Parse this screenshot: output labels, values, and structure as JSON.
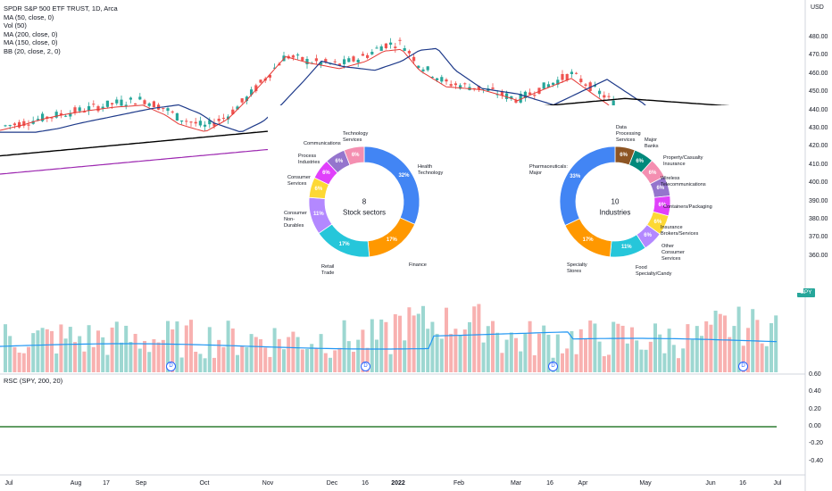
{
  "header": {
    "symbol": "SPDR S&P 500 ETF TRUST, 1D, Arca",
    "indicators": [
      "MA (50, close, 0)",
      "Vol (50)",
      "MA (200, close, 0)",
      "MA (150, close, 0)",
      "BB (20, close, 2, 0)"
    ],
    "rsc": "RSC (SPY, 200, 20)",
    "currency": "USD",
    "price_tag": "SPY"
  },
  "colors": {
    "up": "#26a69a",
    "down": "#ef5350",
    "ma50": "#1e3a8a",
    "ma200": "#000000",
    "ma150": "#9c27b0",
    "bb": "#e53935",
    "vol_ma": "#2196f3",
    "rsc": "#2e7d32"
  },
  "price_axis": [
    "480.00",
    "470.00",
    "460.00",
    "450.00",
    "440.00",
    "430.00",
    "420.00",
    "410.00",
    "400.00",
    "390.00",
    "380.00",
    "370.00",
    "360.00"
  ],
  "rsc_axis": [
    "0.60",
    "0.40",
    "0.20",
    "0.00",
    "-0.20",
    "-0.40"
  ],
  "time_axis": [
    {
      "label": "Jul",
      "bold": false
    },
    {
      "label": "Aug",
      "bold": false
    },
    {
      "label": "17",
      "bold": false
    },
    {
      "label": "Sep",
      "bold": false
    },
    {
      "label": "Oct",
      "bold": false
    },
    {
      "label": "Nov",
      "bold": false
    },
    {
      "label": "Dec",
      "bold": false
    },
    {
      "label": "16",
      "bold": false
    },
    {
      "label": "2022",
      "bold": true
    },
    {
      "label": "Feb",
      "bold": false
    },
    {
      "label": "Mar",
      "bold": false
    },
    {
      "label": "16",
      "bold": false
    },
    {
      "label": "Apr",
      "bold": false
    },
    {
      "label": "May",
      "bold": false
    },
    {
      "label": "Jun",
      "bold": false
    },
    {
      "label": "16",
      "bold": false
    },
    {
      "label": "Jul",
      "bold": false
    }
  ],
  "events": [
    "D",
    "D",
    "D",
    "D"
  ],
  "sectors": {
    "count": "8",
    "label": "Stock sectors",
    "slices": [
      {
        "name": "Health\nTechnology",
        "pct": "32%",
        "value": 32,
        "color": "#4285f4"
      },
      {
        "name": "Finance",
        "pct": "17%",
        "value": 17,
        "color": "#ff9800"
      },
      {
        "name": "Retail\nTrade",
        "pct": "17%",
        "value": 17,
        "color": "#26c6da"
      },
      {
        "name": "Consumer\nNon-\nDurables",
        "pct": "11%",
        "value": 11,
        "color": "#b388ff"
      },
      {
        "name": "Consumer\nServices",
        "pct": "6%",
        "value": 6,
        "color": "#fdd835"
      },
      {
        "name": "Process\nIndustries",
        "pct": "6%",
        "value": 6,
        "color": "#e040fb"
      },
      {
        "name": "Communications",
        "pct": "6%",
        "value": 6,
        "color": "#9575cd"
      },
      {
        "name": "Technology\nServices",
        "pct": "6%",
        "value": 6,
        "color": "#f48fb1"
      }
    ]
  },
  "industries": {
    "count": "10",
    "label": "Industries",
    "slices": [
      {
        "name": "Data\nProcessing\nServices",
        "pct": "6%",
        "value": 6,
        "color": "#8d5524"
      },
      {
        "name": "Major\nBanks",
        "pct": "6%",
        "value": 6,
        "color": "#00897b"
      },
      {
        "name": "Property/Casualty\nInsurance",
        "pct": "6%",
        "value": 6,
        "color": "#f48fb1"
      },
      {
        "name": "Wireless\nTelecommunications",
        "pct": "6%",
        "value": 6,
        "color": "#9575cd"
      },
      {
        "name": "Containers/Packaging",
        "pct": "6%",
        "value": 6,
        "color": "#e040fb"
      },
      {
        "name": "Insurance\nBrokers/Services",
        "pct": "6%",
        "value": 6,
        "color": "#fdd835"
      },
      {
        "name": "Other\nConsumer\nServices",
        "pct": "6%",
        "value": 6,
        "color": "#b388ff"
      },
      {
        "name": "Food\nSpecialty/Candy",
        "pct": "11%",
        "value": 11,
        "color": "#26c6da"
      },
      {
        "name": "Specialty\nStores",
        "pct": "17%",
        "value": 17,
        "color": "#ff9800"
      },
      {
        "name": "Pharmaceuticals:\nMajor",
        "pct": "33%",
        "value": 33,
        "color": "#4285f4"
      }
    ]
  }
}
